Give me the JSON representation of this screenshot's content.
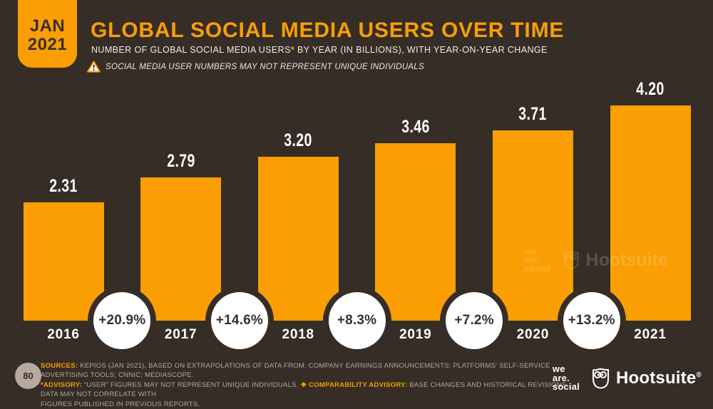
{
  "page": {
    "background_color": "#362d27",
    "accent_color": "#fa9e03",
    "page_number": "80"
  },
  "badge": {
    "line1": "JAN",
    "line2": "2021"
  },
  "header": {
    "title": "GLOBAL SOCIAL MEDIA USERS OVER TIME",
    "subtitle_pre": "NUMBER OF GLOBAL SOCIAL MEDIA USERS",
    "subtitle_asterisk": "*",
    "subtitle_post": " BY YEAR (IN BILLIONS), WITH YEAR-ON-YEAR CHANGE",
    "advisory": "SOCIAL MEDIA USER NUMBERS MAY NOT REPRESENT UNIQUE INDIVIDUALS",
    "advisory_icon": "warning-triangle-icon"
  },
  "chart_data": {
    "type": "bar",
    "title": "GLOBAL SOCIAL MEDIA USERS OVER TIME",
    "unit": "billions of users",
    "categories": [
      "2016",
      "2017",
      "2018",
      "2019",
      "2020",
      "2021"
    ],
    "values": [
      2.31,
      2.79,
      3.2,
      3.46,
      3.71,
      4.2
    ],
    "value_labels": [
      "2.31",
      "2.79",
      "3.20",
      "3.46",
      "3.71",
      "4.20"
    ],
    "growth_labels": [
      "+20.9%",
      "+14.6%",
      "+8.3%",
      "+7.2%",
      "+13.2%"
    ],
    "bar_color": "#fa9e03",
    "value_label_color": "#ffffff",
    "growth_badge_bg": "#ffffff",
    "growth_badge_text_color": "#38302a",
    "xlabel": "",
    "ylabel": "",
    "ylim": [
      0,
      4.5
    ],
    "grid": false,
    "legend": false
  },
  "logos": {
    "we_are_social_lines": [
      "we",
      "are.",
      "social"
    ],
    "hootsuite_label": "Hootsuite",
    "hootsuite_reg": "®",
    "owl_icon": "hootsuite-owl-icon"
  },
  "footer": {
    "page_number": "80",
    "lines": [
      [
        {
          "t": "SOURCES:",
          "h": 1
        },
        {
          "t": " KEPIOS (JAN 2021), BASED ON EXTRAPOLATIONS OF DATA FROM: COMPANY EARNINGS ANNOUNCEMENTS; PLATFORMS' SELF-SERVICE ADVERTISING TOOLS; CNNIC; MEDIASCOPE.",
          "h": 0
        }
      ],
      [
        {
          "t": "*ADVISORY:",
          "h": 1
        },
        {
          "t": " “USER” FIGURES MAY NOT REPRESENT UNIQUE INDIVIDUALS. ",
          "h": 0
        },
        {
          "t": "❖ COMPARABILITY ADVISORY:",
          "h": 1
        },
        {
          "t": " BASE CHANGES AND HISTORICAL REVISIONS. DATA MAY NOT CORRELATE WITH",
          "h": 0
        }
      ],
      [
        {
          "t": "FIGURES PUBLISHED IN PREVIOUS REPORTS.",
          "h": 0
        }
      ]
    ]
  }
}
